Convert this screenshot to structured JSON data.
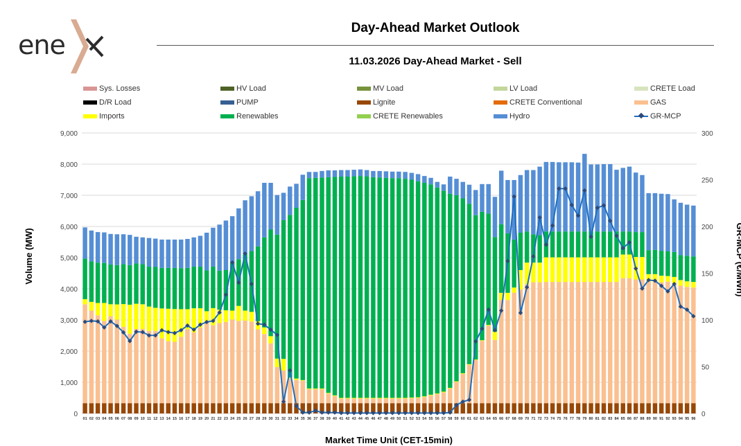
{
  "logo_text": "enex",
  "header": {
    "title": "Day-Ahead Market Outlook",
    "subtitle": "11.03.2026  Day-Ahead Market - Sell"
  },
  "legend": [
    {
      "label": "Sys. Losses",
      "color": "#d99594",
      "kind": "bar"
    },
    {
      "label": "HV Load",
      "color": "#4f6228",
      "kind": "bar"
    },
    {
      "label": "MV Load",
      "color": "#77933c",
      "kind": "bar"
    },
    {
      "label": "LV Load",
      "color": "#c3d69b",
      "kind": "bar"
    },
    {
      "label": "CRETE Load",
      "color": "#d7e4bd",
      "kind": "bar"
    },
    {
      "label": "D/R Load",
      "color": "#000000",
      "kind": "bar"
    },
    {
      "label": "PUMP",
      "color": "#376092",
      "kind": "bar"
    },
    {
      "label": "Lignite",
      "color": "#974806",
      "kind": "bar"
    },
    {
      "label": "CRETE Conventional",
      "color": "#e46c0a",
      "kind": "bar"
    },
    {
      "label": "GAS",
      "color": "#fac090",
      "kind": "bar"
    },
    {
      "label": "Imports",
      "color": "#ffff00",
      "kind": "bar"
    },
    {
      "label": "Renewables",
      "color": "#00b050",
      "kind": "bar"
    },
    {
      "label": "CRETE Renewables",
      "color": "#92d050",
      "kind": "bar"
    },
    {
      "label": "Hydro",
      "color": "#558ed5",
      "kind": "bar"
    },
    {
      "label": "GR-MCP",
      "color": "#1f6fbf",
      "kind": "line"
    }
  ],
  "chart_data": {
    "type": "bar",
    "stacking": "cumulative_top values in MW (each layer spans from previous layer top to its own top)",
    "xlabel": "Market Time Unit (CET-15min)",
    "ylabel": "Volume (MW)",
    "y2label": "GR-MCP (€/MWh)",
    "ylim": [
      0,
      9000
    ],
    "y2lim": [
      0,
      300
    ],
    "yticks": [
      "0",
      "1,000",
      "2,000",
      "3,000",
      "4,000",
      "5,000",
      "6,000",
      "7,000",
      "8,000",
      "9,000"
    ],
    "y2ticks": [
      "0",
      "50",
      "100",
      "150",
      "200",
      "250",
      "300"
    ],
    "grid": true,
    "legend_position": "top",
    "categories": [
      "01",
      "02",
      "03",
      "04",
      "05",
      "06",
      "07",
      "08",
      "09",
      "10",
      "11",
      "12",
      "13",
      "14",
      "15",
      "16",
      "17",
      "18",
      "19",
      "20",
      "21",
      "22",
      "23",
      "24",
      "25",
      "26",
      "27",
      "28",
      "29",
      "30",
      "31",
      "32",
      "33",
      "34",
      "35",
      "36",
      "37",
      "38",
      "39",
      "40",
      "41",
      "42",
      "43",
      "44",
      "45",
      "46",
      "47",
      "48",
      "49",
      "50",
      "51",
      "52",
      "53",
      "54",
      "55",
      "56",
      "57",
      "58",
      "59",
      "60",
      "61",
      "62",
      "63",
      "64",
      "65",
      "66",
      "67",
      "68",
      "69",
      "70",
      "71",
      "72",
      "73",
      "74",
      "75",
      "76",
      "77",
      "78",
      "79",
      "80",
      "81",
      "82",
      "83",
      "84",
      "85",
      "86",
      "87",
      "88",
      "89",
      "90",
      "91",
      "92",
      "93",
      "94",
      "95",
      "96"
    ],
    "series": [
      {
        "name": "Lignite",
        "color": "#974806",
        "cumulative_top": [
          330,
          330,
          330,
          330,
          330,
          330,
          330,
          330,
          330,
          330,
          330,
          330,
          330,
          330,
          330,
          330,
          330,
          330,
          330,
          330,
          330,
          330,
          330,
          330,
          330,
          330,
          330,
          330,
          330,
          330,
          330,
          330,
          330,
          330,
          330,
          330,
          330,
          330,
          330,
          330,
          330,
          330,
          330,
          330,
          330,
          330,
          330,
          330,
          330,
          330,
          330,
          330,
          330,
          330,
          330,
          330,
          330,
          330,
          330,
          330,
          330,
          330,
          330,
          330,
          330,
          330,
          330,
          330,
          330,
          330,
          330,
          330,
          330,
          330,
          330,
          330,
          330,
          330,
          330,
          330,
          330,
          330,
          330,
          330,
          330,
          330,
          330,
          330,
          330,
          330,
          330,
          330,
          330,
          330,
          330,
          330
        ]
      },
      {
        "name": "GAS",
        "color": "#fac090",
        "cumulative_top": [
          3504,
          3300,
          3150,
          2970,
          3120,
          3010,
          2780,
          2560,
          2710,
          2710,
          2650,
          2650,
          2410,
          2320,
          2300,
          2460,
          2700,
          2600,
          2760,
          2940,
          2830,
          2900,
          2940,
          3010,
          2970,
          2980,
          2950,
          2700,
          2550,
          2250,
          1490,
          1380,
          1120,
          1080,
          1050,
          780,
          780,
          780,
          640,
          560,
          480,
          480,
          480,
          480,
          480,
          480,
          480,
          480,
          480,
          480,
          480,
          490,
          500,
          530,
          580,
          620,
          680,
          800,
          1007,
          1267,
          1560,
          1711,
          2330,
          2820,
          2360,
          3640,
          3640,
          3875,
          3980,
          4150,
          4210,
          4210,
          4220,
          4220,
          4220,
          4220,
          4220,
          4220,
          4220,
          4220,
          4220,
          4220,
          4220,
          4220,
          4340,
          4340,
          4300,
          4300,
          4230,
          4230,
          4210,
          4230,
          4170,
          4100,
          4060,
          4040
        ]
      },
      {
        "name": "Imports",
        "color": "#ffff00",
        "cumulative_top": [
          3667,
          3580,
          3545,
          3545,
          3504,
          3500,
          3510,
          3490,
          3520,
          3504,
          3430,
          3390,
          3370,
          3360,
          3350,
          3345,
          3345,
          3375,
          3375,
          3280,
          3380,
          3330,
          3310,
          3300,
          3450,
          3300,
          3260,
          2960,
          2760,
          2480,
          1760,
          1750,
          1150,
          1120,
          1070,
          800,
          800,
          800,
          660,
          580,
          500,
          500,
          500,
          500,
          500,
          500,
          500,
          500,
          500,
          500,
          500,
          510,
          520,
          550,
          600,
          640,
          700,
          820,
          1030,
          1290,
          1580,
          1730,
          2350,
          2840,
          2620,
          3870,
          3870,
          4040,
          4600,
          4840,
          4840,
          4840,
          5010,
          5010,
          5010,
          5010,
          5010,
          5010,
          5010,
          5010,
          5010,
          5010,
          5010,
          5010,
          5100,
          5100,
          5020,
          5020,
          4470,
          4470,
          4420,
          4410,
          4380,
          4280,
          4240,
          4220
        ]
      },
      {
        "name": "Renewables",
        "color": "#00b050",
        "cumulative_top": [
          4970,
          4880,
          4840,
          4830,
          4780,
          4760,
          4790,
          4760,
          4810,
          4790,
          4710,
          4700,
          4670,
          4670,
          4670,
          4660,
          4670,
          4710,
          4710,
          4590,
          4710,
          4580,
          4600,
          4830,
          4950,
          5100,
          5210,
          5360,
          5650,
          5900,
          5740,
          6200,
          6370,
          6600,
          6850,
          7550,
          7560,
          7570,
          7580,
          7590,
          7600,
          7600,
          7610,
          7620,
          7610,
          7580,
          7570,
          7560,
          7550,
          7550,
          7530,
          7500,
          7450,
          7400,
          7350,
          7250,
          7150,
          7050,
          7000,
          6900,
          6730,
          6360,
          6470,
          6410,
          5660,
          6070,
          5780,
          5580,
          5800,
          5840,
          5750,
          5720,
          5840,
          5840,
          5840,
          5840,
          5840,
          5840,
          5840,
          5840,
          5840,
          5840,
          5840,
          5840,
          5840,
          5840,
          5820,
          5820,
          5240,
          5250,
          5220,
          5200,
          5180,
          5080,
          5060,
          5040
        ]
      },
      {
        "name": "Hydro",
        "color": "#558ed5",
        "cumulative_top": [
          5970,
          5870,
          5820,
          5810,
          5760,
          5750,
          5750,
          5730,
          5670,
          5650,
          5630,
          5610,
          5580,
          5580,
          5580,
          5580,
          5600,
          5650,
          5700,
          5800,
          5960,
          6060,
          6190,
          6330,
          6580,
          6840,
          6970,
          7130,
          7400,
          7400,
          7010,
          7080,
          7280,
          7370,
          7660,
          7750,
          7750,
          7780,
          7800,
          7800,
          7810,
          7810,
          7820,
          7830,
          7810,
          7780,
          7780,
          7770,
          7760,
          7760,
          7750,
          7720,
          7680,
          7620,
          7560,
          7430,
          7350,
          7600,
          7530,
          7430,
          7340,
          7170,
          7360,
          7360,
          6950,
          7790,
          7490,
          7490,
          7650,
          7810,
          7810,
          7920,
          8070,
          8070,
          8060,
          8060,
          8060,
          8050,
          8330,
          7990,
          7990,
          8000,
          8000,
          7820,
          7880,
          7920,
          7730,
          7650,
          7070,
          7070,
          7050,
          7040,
          6870,
          6760,
          6700,
          6670
        ]
      }
    ],
    "line": {
      "name": "GR-MCP",
      "axis": "right",
      "color": "#1f6fbf",
      "values": [
        98,
        99,
        98.5,
        92,
        98.5,
        93.6,
        86.7,
        77.5,
        87.4,
        87,
        83.5,
        83.5,
        89,
        87,
        86,
        89,
        94,
        89.6,
        95,
        97.8,
        99,
        108,
        127,
        161.5,
        140,
        171,
        138.5,
        96,
        95,
        89.6,
        84,
        12.6,
        46,
        8,
        1,
        1,
        3,
        1,
        1,
        1,
        0.5,
        0.5,
        0.5,
        0.5,
        0.5,
        0.5,
        0.5,
        0.5,
        0.5,
        0.5,
        0.5,
        0.5,
        0.5,
        0.5,
        0.5,
        0.5,
        0.5,
        1,
        9,
        12.6,
        14.6,
        77,
        90.6,
        111,
        89,
        110,
        163,
        232,
        107.6,
        135,
        168,
        209.6,
        180.5,
        201,
        240.5,
        240.5,
        223,
        211.6,
        238.5,
        189,
        220,
        222.5,
        206,
        190,
        176.8,
        183,
        155,
        133.6,
        142.7,
        142,
        136.5,
        130.6,
        138.5,
        114.3,
        111,
        104
      ]
    }
  }
}
